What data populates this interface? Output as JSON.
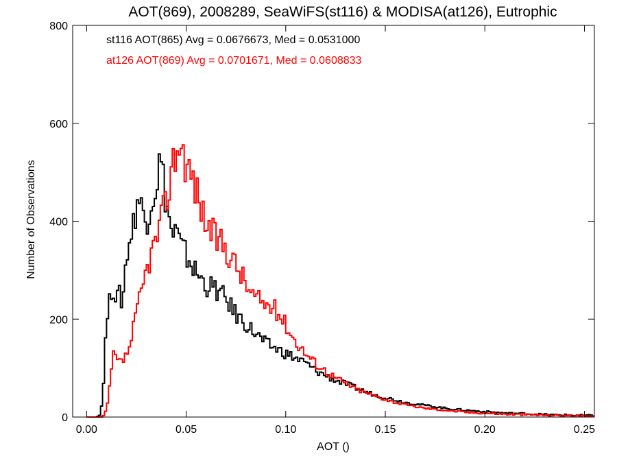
{
  "chart_data": {
    "type": "line",
    "title": "AOT(869), 2008289, SeaWiFS(st116) & MODISA(at126), Eutrophic",
    "xlabel": "AOT ()",
    "ylabel": "Number of Observations",
    "xlim": [
      -0.007,
      0.255
    ],
    "ylim": [
      0,
      800
    ],
    "x_ticks": [
      0.0,
      0.05,
      0.1,
      0.15,
      0.2,
      0.25
    ],
    "x_tick_labels": [
      "0.00",
      "0.05",
      "0.10",
      "0.15",
      "0.20",
      "0.25"
    ],
    "y_ticks": [
      0,
      200,
      400,
      600,
      800
    ],
    "y_tick_labels": [
      "0",
      "200",
      "400",
      "600",
      "800"
    ],
    "grid": false,
    "legend_position": "top-left",
    "bin_width": 0.001,
    "x_start": 0.0,
    "x_end": 0.255,
    "series": [
      {
        "name": "st116",
        "legend_text": "st116 AOT(865) Avg = 0.0676673, Med = 0.0531000",
        "color": "#000000",
        "knots": [
          [
            0.0,
            0
          ],
          [
            0.005,
            0
          ],
          [
            0.007,
            5
          ],
          [
            0.008,
            40
          ],
          [
            0.009,
            110
          ],
          [
            0.01,
            200
          ],
          [
            0.011,
            215
          ],
          [
            0.012,
            250
          ],
          [
            0.013,
            270
          ],
          [
            0.014,
            260
          ],
          [
            0.015,
            240
          ],
          [
            0.017,
            250
          ],
          [
            0.018,
            230
          ],
          [
            0.02,
            330
          ],
          [
            0.022,
            370
          ],
          [
            0.024,
            400
          ],
          [
            0.025,
            440
          ],
          [
            0.026,
            450
          ],
          [
            0.028,
            420
          ],
          [
            0.03,
            400
          ],
          [
            0.032,
            440
          ],
          [
            0.034,
            460
          ],
          [
            0.036,
            500
          ],
          [
            0.037,
            530
          ],
          [
            0.038,
            500
          ],
          [
            0.039,
            470
          ],
          [
            0.04,
            440
          ],
          [
            0.041,
            420
          ],
          [
            0.042,
            390
          ],
          [
            0.043,
            370
          ],
          [
            0.045,
            380
          ],
          [
            0.047,
            350
          ],
          [
            0.05,
            330
          ],
          [
            0.052,
            320
          ],
          [
            0.054,
            300
          ],
          [
            0.056,
            290
          ],
          [
            0.058,
            280
          ],
          [
            0.06,
            270
          ],
          [
            0.065,
            260
          ],
          [
            0.07,
            240
          ],
          [
            0.075,
            210
          ],
          [
            0.08,
            190
          ],
          [
            0.085,
            170
          ],
          [
            0.09,
            150
          ],
          [
            0.095,
            140
          ],
          [
            0.1,
            130
          ],
          [
            0.105,
            120
          ],
          [
            0.11,
            110
          ],
          [
            0.115,
            95
          ],
          [
            0.12,
            85
          ],
          [
            0.125,
            75
          ],
          [
            0.13,
            68
          ],
          [
            0.135,
            60
          ],
          [
            0.14,
            52
          ],
          [
            0.145,
            45
          ],
          [
            0.15,
            40
          ],
          [
            0.155,
            35
          ],
          [
            0.16,
            30
          ],
          [
            0.17,
            24
          ],
          [
            0.18,
            18
          ],
          [
            0.19,
            14
          ],
          [
            0.2,
            11
          ],
          [
            0.21,
            8
          ],
          [
            0.22,
            7
          ],
          [
            0.23,
            5
          ],
          [
            0.24,
            4
          ],
          [
            0.25,
            3
          ],
          [
            0.255,
            3
          ]
        ],
        "jitter": 1
      },
      {
        "name": "at126",
        "legend_text": "at126 AOT(869) Avg = 0.0701671, Med = 0.0608833",
        "color": "#ff0000",
        "knots": [
          [
            0.0,
            0
          ],
          [
            0.008,
            0
          ],
          [
            0.009,
            5
          ],
          [
            0.01,
            15
          ],
          [
            0.011,
            40
          ],
          [
            0.012,
            80
          ],
          [
            0.013,
            120
          ],
          [
            0.014,
            130
          ],
          [
            0.015,
            115
          ],
          [
            0.017,
            110
          ],
          [
            0.019,
            120
          ],
          [
            0.02,
            125
          ],
          [
            0.022,
            150
          ],
          [
            0.024,
            190
          ],
          [
            0.026,
            230
          ],
          [
            0.028,
            260
          ],
          [
            0.03,
            300
          ],
          [
            0.032,
            330
          ],
          [
            0.034,
            350
          ],
          [
            0.036,
            380
          ],
          [
            0.038,
            410
          ],
          [
            0.04,
            440
          ],
          [
            0.042,
            490
          ],
          [
            0.044,
            530
          ],
          [
            0.046,
            560
          ],
          [
            0.048,
            550
          ],
          [
            0.05,
            520
          ],
          [
            0.052,
            500
          ],
          [
            0.054,
            480
          ],
          [
            0.056,
            450
          ],
          [
            0.058,
            420
          ],
          [
            0.06,
            400
          ],
          [
            0.062,
            380
          ],
          [
            0.065,
            365
          ],
          [
            0.068,
            355
          ],
          [
            0.07,
            345
          ],
          [
            0.072,
            330
          ],
          [
            0.075,
            310
          ],
          [
            0.078,
            290
          ],
          [
            0.08,
            270
          ],
          [
            0.083,
            250
          ],
          [
            0.086,
            240
          ],
          [
            0.09,
            230
          ],
          [
            0.093,
            225
          ],
          [
            0.096,
            215
          ],
          [
            0.1,
            190
          ],
          [
            0.104,
            160
          ],
          [
            0.108,
            140
          ],
          [
            0.11,
            130
          ],
          [
            0.115,
            110
          ],
          [
            0.12,
            95
          ],
          [
            0.125,
            80
          ],
          [
            0.13,
            70
          ],
          [
            0.135,
            58
          ],
          [
            0.14,
            50
          ],
          [
            0.145,
            43
          ],
          [
            0.15,
            36
          ],
          [
            0.155,
            30
          ],
          [
            0.16,
            25
          ],
          [
            0.17,
            18
          ],
          [
            0.18,
            14
          ],
          [
            0.19,
            10
          ],
          [
            0.2,
            8
          ],
          [
            0.21,
            6
          ],
          [
            0.22,
            5
          ],
          [
            0.23,
            4
          ],
          [
            0.24,
            3
          ],
          [
            0.25,
            2
          ],
          [
            0.255,
            2
          ]
        ],
        "jitter": 2
      }
    ]
  }
}
